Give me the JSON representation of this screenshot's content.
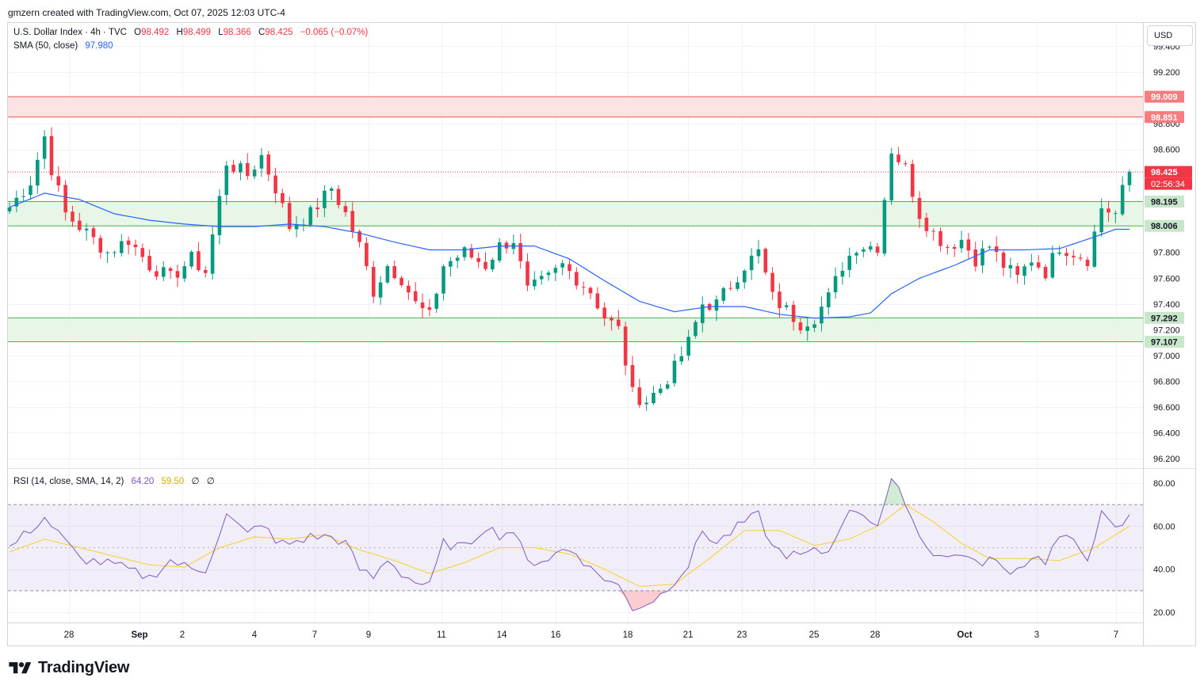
{
  "header": {
    "text": "gmzern created with TradingView.com, Oct 07, 2025 12:03 UTC-4"
  },
  "currency_button": "USD",
  "legend": {
    "symbol": "U.S. Dollar Index · 4h · TVC",
    "o_label": "O",
    "o": "98.492",
    "h_label": "H",
    "h": "98.499",
    "l_label": "L",
    "l": "98.366",
    "c_label": "C",
    "c": "98.425",
    "change": "−0.065 (−0.07%)",
    "sma_label": "SMA (50, close)",
    "sma_value": "97.980",
    "rsi_label": "RSI (14, close, SMA, 14, 2)",
    "rsi_value": "64.20",
    "rsi_ma_value": "59.50",
    "rsi_na1": "∅",
    "rsi_na2": "∅"
  },
  "brand": {
    "name": "TradingView"
  },
  "colors": {
    "up": "#089981",
    "down": "#f23645",
    "sma": "#2962ff",
    "rsi": "#7e57c2",
    "rsi_ma": "#f5d546",
    "resistance_zone": "#fde1e1",
    "support_zone": "#e3f4e3",
    "zone_line": "#4caf50",
    "resistance_line": "#ef5350"
  },
  "chart_data": [
    {
      "type": "candlestick",
      "title": "U.S. Dollar Index · 4h · TVC",
      "ylim": [
        96.16,
        99.45
      ],
      "y_ticks": [
        "96.200",
        "96.400",
        "96.600",
        "96.800",
        "97.000",
        "97.200",
        "97.400",
        "97.600",
        "97.800",
        "98.600",
        "98.800",
        "99.200",
        "99.400"
      ],
      "x_ticks": [
        "28",
        "Sep",
        "2",
        "4",
        "7",
        "9",
        "11",
        "14",
        "16",
        "18",
        "21",
        "23",
        "25",
        "28",
        "Oct",
        "3",
        "7"
      ],
      "price_labels": [
        {
          "value": "99.009",
          "kind": "resistance"
        },
        {
          "value": "98.851",
          "kind": "resistance"
        },
        {
          "value": "98.425",
          "kind": "last"
        },
        {
          "value": "02:56:34",
          "kind": "countdown"
        },
        {
          "value": "98.195",
          "kind": "support"
        },
        {
          "value": "98.006",
          "kind": "support"
        },
        {
          "value": "97.292",
          "kind": "support"
        },
        {
          "value": "97.107",
          "kind": "support"
        }
      ],
      "zones": [
        {
          "from": 98.851,
          "to": 99.009,
          "kind": "resistance"
        },
        {
          "from": 98.006,
          "to": 98.195,
          "kind": "support"
        },
        {
          "from": 97.107,
          "to": 97.292,
          "kind": "support"
        }
      ],
      "last_price": 98.425,
      "anchors": [
        [
          0,
          98.15
        ],
        [
          3,
          98.35
        ],
        [
          5,
          98.7
        ],
        [
          6,
          98.45
        ],
        [
          8,
          98.1
        ],
        [
          11,
          97.95
        ],
        [
          14,
          97.8
        ],
        [
          17,
          97.9
        ],
        [
          20,
          97.7
        ],
        [
          23,
          97.6
        ],
        [
          26,
          97.75
        ],
        [
          28,
          97.65
        ],
        [
          31,
          98.5
        ],
        [
          34,
          98.4
        ],
        [
          36,
          98.55
        ],
        [
          38,
          98.3
        ],
        [
          40,
          98.0
        ],
        [
          43,
          98.1
        ],
        [
          46,
          98.3
        ],
        [
          48,
          98.1
        ],
        [
          50,
          97.85
        ],
        [
          52,
          97.5
        ],
        [
          54,
          97.7
        ],
        [
          56,
          97.6
        ],
        [
          58,
          97.4
        ],
        [
          60,
          97.3
        ],
        [
          62,
          97.7
        ],
        [
          65,
          97.8
        ],
        [
          68,
          97.7
        ],
        [
          70,
          97.85
        ],
        [
          72,
          97.9
        ],
        [
          74,
          97.5
        ],
        [
          77,
          97.6
        ],
        [
          79,
          97.7
        ],
        [
          81,
          97.6
        ],
        [
          83,
          97.5
        ],
        [
          85,
          97.3
        ],
        [
          87,
          97.2
        ],
        [
          89,
          96.7
        ],
        [
          91,
          96.65
        ],
        [
          93,
          96.75
        ],
        [
          95,
          96.9
        ],
        [
          97,
          97.1
        ],
        [
          99,
          97.4
        ],
        [
          101,
          97.4
        ],
        [
          103,
          97.55
        ],
        [
          105,
          97.7
        ],
        [
          107,
          97.8
        ],
        [
          109,
          97.45
        ],
        [
          111,
          97.35
        ],
        [
          113,
          97.25
        ],
        [
          115,
          97.3
        ],
        [
          117,
          97.45
        ],
        [
          119,
          97.7
        ],
        [
          121,
          97.85
        ],
        [
          124,
          97.85
        ],
        [
          126,
          98.6
        ],
        [
          128,
          98.45
        ],
        [
          130,
          98.1
        ],
        [
          132,
          97.95
        ],
        [
          134,
          97.85
        ],
        [
          136,
          97.9
        ],
        [
          138,
          97.75
        ],
        [
          140,
          97.85
        ],
        [
          142,
          97.7
        ],
        [
          144,
          97.6
        ],
        [
          146,
          97.75
        ],
        [
          148,
          97.65
        ],
        [
          150,
          97.85
        ],
        [
          152,
          97.8
        ],
        [
          154,
          97.75
        ],
        [
          156,
          98.15
        ],
        [
          158,
          98.1
        ],
        [
          160,
          98.45
        ]
      ],
      "sma_anchors": [
        [
          0,
          98.15
        ],
        [
          5,
          98.26
        ],
        [
          10,
          98.21
        ],
        [
          15,
          98.1
        ],
        [
          20,
          98.05
        ],
        [
          25,
          98.02
        ],
        [
          30,
          98.0
        ],
        [
          35,
          98.0
        ],
        [
          40,
          98.02
        ],
        [
          45,
          98.0
        ],
        [
          50,
          97.95
        ],
        [
          55,
          97.88
        ],
        [
          60,
          97.82
        ],
        [
          65,
          97.82
        ],
        [
          70,
          97.85
        ],
        [
          75,
          97.85
        ],
        [
          80,
          97.75
        ],
        [
          85,
          97.58
        ],
        [
          90,
          97.42
        ],
        [
          95,
          97.34
        ],
        [
          100,
          97.38
        ],
        [
          105,
          97.38
        ],
        [
          110,
          97.32
        ],
        [
          115,
          97.29
        ],
        [
          120,
          97.3
        ],
        [
          123,
          97.33
        ],
        [
          126,
          97.48
        ],
        [
          130,
          97.6
        ],
        [
          135,
          97.7
        ],
        [
          140,
          97.82
        ],
        [
          145,
          97.82
        ],
        [
          150,
          97.83
        ],
        [
          155,
          97.92
        ],
        [
          158,
          97.98
        ],
        [
          160,
          97.98
        ]
      ]
    },
    {
      "type": "line",
      "title": "RSI (14, close, SMA, 14, 2)",
      "ylim": [
        14,
        84
      ],
      "y_ticks": [
        "20.00",
        "40.00",
        "60.00",
        "80.00"
      ],
      "bands": {
        "upper": 70,
        "middle": 50,
        "lower": 30
      },
      "series": [
        {
          "name": "RSI",
          "anchors": [
            [
              0,
              50
            ],
            [
              5,
              64
            ],
            [
              10,
              45
            ],
            [
              15,
              42
            ],
            [
              20,
              36
            ],
            [
              23,
              44
            ],
            [
              26,
              40
            ],
            [
              28,
              40
            ],
            [
              31,
              65
            ],
            [
              34,
              56
            ],
            [
              36,
              62
            ],
            [
              38,
              52
            ],
            [
              40,
              52
            ],
            [
              43,
              55
            ],
            [
              46,
              55
            ],
            [
              48,
              52
            ],
            [
              50,
              40
            ],
            [
              52,
              36
            ],
            [
              54,
              45
            ],
            [
              56,
              38
            ],
            [
              58,
              34
            ],
            [
              60,
              32
            ],
            [
              62,
              52
            ],
            [
              65,
              50
            ],
            [
              68,
              60
            ],
            [
              70,
              56
            ],
            [
              72,
              58
            ],
            [
              74,
              43
            ],
            [
              77,
              45
            ],
            [
              79,
              49
            ],
            [
              81,
              48
            ],
            [
              83,
              40
            ],
            [
              85,
              36
            ],
            [
              87,
              32
            ],
            [
              89,
              22
            ],
            [
              91,
              24
            ],
            [
              93,
              28
            ],
            [
              95,
              35
            ],
            [
              97,
              42
            ],
            [
              99,
              58
            ],
            [
              101,
              52
            ],
            [
              103,
              57
            ],
            [
              105,
              62
            ],
            [
              107,
              65
            ],
            [
              109,
              50
            ],
            [
              111,
              47
            ],
            [
              113,
              46
            ],
            [
              115,
              48
            ],
            [
              117,
              48
            ],
            [
              119,
              63
            ],
            [
              121,
              68
            ],
            [
              124,
              61
            ],
            [
              126,
              80
            ],
            [
              128,
              72
            ],
            [
              130,
              55
            ],
            [
              132,
              48
            ],
            [
              134,
              45
            ],
            [
              136,
              48
            ],
            [
              138,
              42
            ],
            [
              140,
              45
            ],
            [
              142,
              40
            ],
            [
              144,
              40
            ],
            [
              146,
              46
            ],
            [
              148,
              44
            ],
            [
              150,
              55
            ],
            [
              152,
              52
            ],
            [
              154,
              46
            ],
            [
              156,
              65
            ],
            [
              158,
              58
            ],
            [
              160,
              64
            ]
          ]
        },
        {
          "name": "SMA",
          "anchors": [
            [
              0,
              48
            ],
            [
              5,
              54
            ],
            [
              10,
              50
            ],
            [
              15,
              46
            ],
            [
              20,
              42
            ],
            [
              25,
              41
            ],
            [
              30,
              50
            ],
            [
              35,
              55
            ],
            [
              40,
              54
            ],
            [
              45,
              56
            ],
            [
              50,
              49
            ],
            [
              55,
              44
            ],
            [
              60,
              38
            ],
            [
              65,
              43
            ],
            [
              70,
              50
            ],
            [
              75,
              50
            ],
            [
              80,
              47
            ],
            [
              85,
              40
            ],
            [
              90,
              32
            ],
            [
              95,
              33
            ],
            [
              100,
              45
            ],
            [
              105,
              58
            ],
            [
              110,
              58
            ],
            [
              115,
              51
            ],
            [
              120,
              54
            ],
            [
              124,
              60
            ],
            [
              128,
              70
            ],
            [
              132,
              62
            ],
            [
              136,
              52
            ],
            [
              140,
              45
            ],
            [
              145,
              45
            ],
            [
              150,
              44
            ],
            [
              155,
              50
            ],
            [
              160,
              60
            ]
          ]
        }
      ]
    }
  ]
}
